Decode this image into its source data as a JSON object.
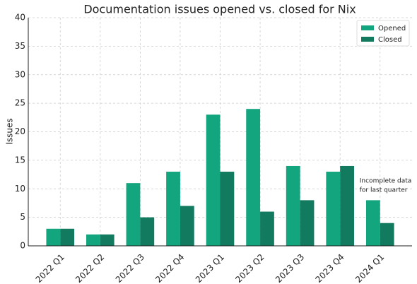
{
  "chart_data": {
    "type": "bar",
    "title": "Documentation issues opened vs. closed for Nix",
    "y_label": "Issues",
    "categories": [
      "2022 Q1",
      "2022 Q2",
      "2022 Q3",
      "2022 Q4",
      "2023 Q1",
      "2023 Q2",
      "2023 Q3",
      "2023 Q4",
      "2024 Q1"
    ],
    "series": [
      {
        "name": "Opened",
        "color": "#13a57e",
        "values": [
          3,
          2,
          11,
          13,
          23,
          24,
          14,
          13,
          8
        ]
      },
      {
        "name": "Closed",
        "color": "#127a5f",
        "values": [
          3,
          2,
          5,
          7,
          13,
          6,
          8,
          14,
          4
        ]
      }
    ],
    "ylim": [
      0,
      40
    ],
    "yticks": [
      0,
      5,
      10,
      15,
      20,
      25,
      30,
      35,
      40
    ],
    "grid": true,
    "legend": "upper-right",
    "annotation": [
      "Incomplete data",
      "for last quarter"
    ]
  }
}
